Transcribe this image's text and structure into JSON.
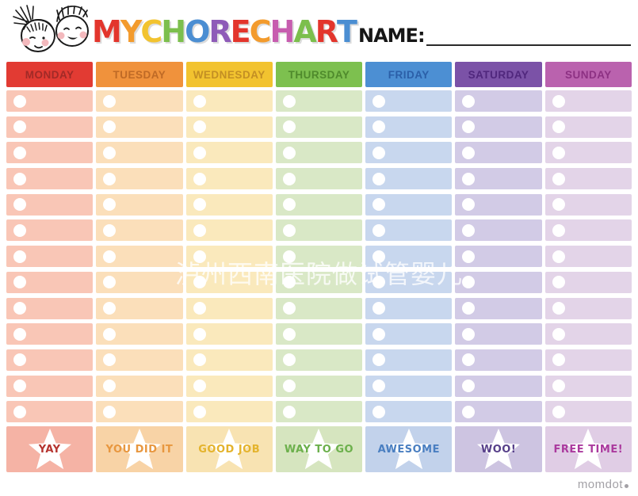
{
  "header": {
    "title_letters": [
      {
        "ch": "M",
        "color": "#e3352c"
      },
      {
        "ch": "Y",
        "color": "#f39b2d"
      },
      {
        "ch": " ",
        "color": ""
      },
      {
        "ch": "C",
        "color": "#f2c32f"
      },
      {
        "ch": "H",
        "color": "#7cbf4d"
      },
      {
        "ch": "O",
        "color": "#4b8ed2"
      },
      {
        "ch": "R",
        "color": "#8e5bb8"
      },
      {
        "ch": "E",
        "color": "#e3352c"
      },
      {
        "ch": " ",
        "color": ""
      },
      {
        "ch": "C",
        "color": "#f39b2d"
      },
      {
        "ch": "H",
        "color": "#c75daf"
      },
      {
        "ch": "A",
        "color": "#7cbf4d"
      },
      {
        "ch": "R",
        "color": "#e3352c"
      },
      {
        "ch": "T",
        "color": "#4b8ed2"
      }
    ],
    "name_label": "NAME:",
    "name_value": ""
  },
  "chart": {
    "rows_per_day": 13,
    "days": [
      {
        "label": "MONDAY",
        "header_bg": "#e23b33",
        "header_text": "#a12a27",
        "cell_bg": "#f9c6b6",
        "reward_bg": "#f5b3a5",
        "reward_label": "YAY",
        "reward_text": "#b5342f"
      },
      {
        "label": "TUESDAY",
        "header_bg": "#f0923c",
        "header_text": "#bf6a26",
        "cell_bg": "#fbdfba",
        "reward_bg": "#f8d3a6",
        "reward_label": "YOU DID IT",
        "reward_text": "#e8973f"
      },
      {
        "label": "WEDNESDAY",
        "header_bg": "#f2c32f",
        "header_text": "#c38f24",
        "cell_bg": "#fae9bc",
        "reward_bg": "#f8e3b2",
        "reward_label": "GOOD JOB",
        "reward_text": "#e4b32c"
      },
      {
        "label": "THURSDAY",
        "header_bg": "#7dc04f",
        "header_text": "#4f8a2c",
        "cell_bg": "#d9e8c6",
        "reward_bg": "#d6e5bf",
        "reward_label": "WAY TO GO",
        "reward_text": "#6cb04c"
      },
      {
        "label": "FRIDAY",
        "header_bg": "#4c8fd3",
        "header_text": "#2b5fa8",
        "cell_bg": "#c8d7ee",
        "reward_bg": "#c2d2eb",
        "reward_label": "AWESOME",
        "reward_text": "#4a7fc1"
      },
      {
        "label": "SATURDAY",
        "header_bg": "#7b52a7",
        "header_text": "#50277d",
        "cell_bg": "#d2cbe6",
        "reward_bg": "#cdc4e1",
        "reward_label": "WOO!",
        "reward_text": "#57408a"
      },
      {
        "label": "SUNDAY",
        "header_bg": "#ba62ae",
        "header_text": "#8d3183",
        "cell_bg": "#e3d4e8",
        "reward_bg": "#e0cde5",
        "reward_label": "FREE TIME!",
        "reward_text": "#ab3a9e"
      }
    ]
  },
  "watermark": {
    "text": "泸州西南医院做试管婴儿",
    "color": "#ffffff"
  },
  "footer": {
    "brand": "momdot"
  }
}
